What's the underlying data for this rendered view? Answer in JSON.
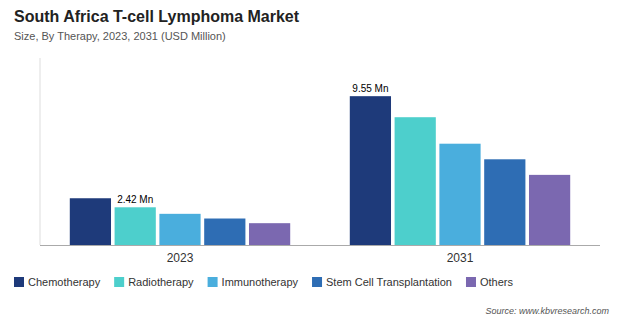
{
  "chart_data": {
    "type": "bar",
    "title": "South Africa T-cell Lymphoma Market",
    "subtitle": "Size, By Therapy, 2023, 2031 (USD Million)",
    "source": "Source: www.kbvresearch.com",
    "categories": [
      "2023",
      "2031"
    ],
    "series": [
      {
        "name": "Chemotherapy",
        "color": "#1e3a7a",
        "values": [
          3.0,
          9.55
        ]
      },
      {
        "name": "Radiotherapy",
        "color": "#4dcfcc",
        "values": [
          2.42,
          8.2
        ]
      },
      {
        "name": "Immunotherapy",
        "color": "#4aaedd",
        "values": [
          2.0,
          6.5
        ]
      },
      {
        "name": "Stem Cell Transplantation",
        "color": "#2e6db4",
        "values": [
          1.7,
          5.5
        ]
      },
      {
        "name": "Others",
        "color": "#7b68b0",
        "values": [
          1.4,
          4.5
        ]
      }
    ],
    "ylim": [
      0,
      12
    ],
    "tick_labels": "x",
    "grid": false,
    "legend": "bottom",
    "annotations": [
      {
        "text": "2.42 Mn",
        "x": "2023",
        "y": 2.42
      },
      {
        "text": "9.55 Mn",
        "x": "2031",
        "y": 9.55
      }
    ]
  }
}
